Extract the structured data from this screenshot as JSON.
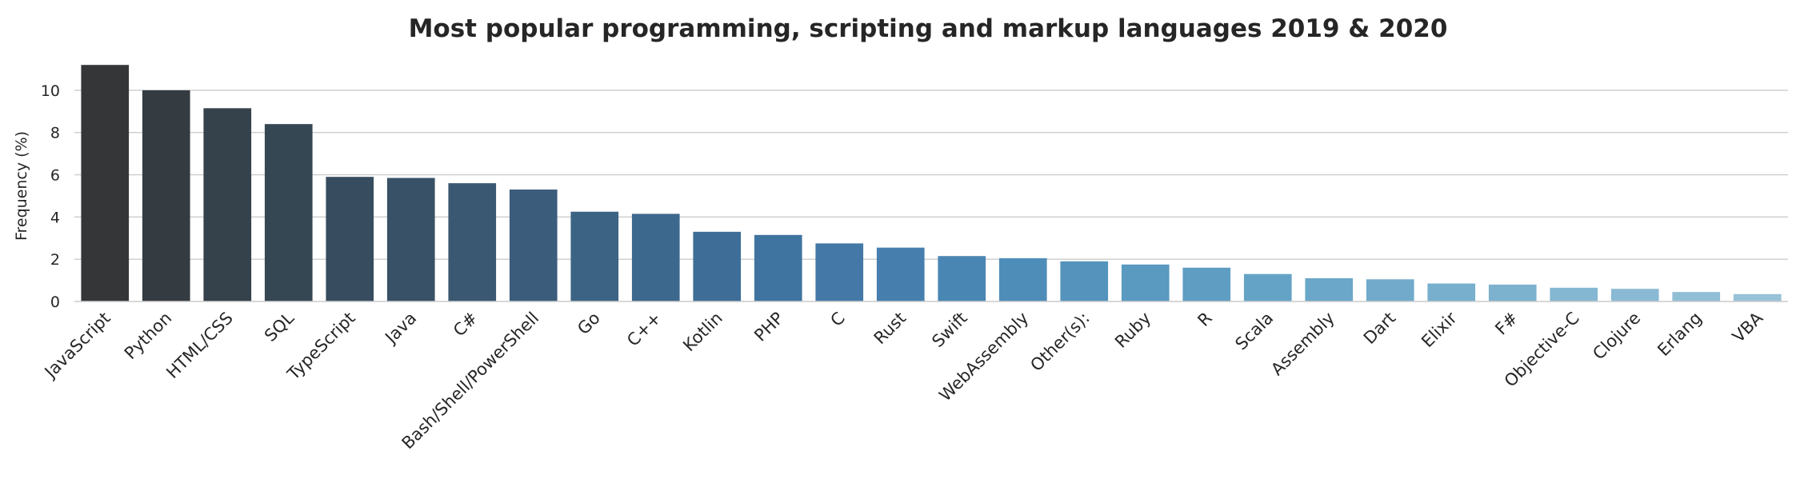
{
  "chart_data": {
    "type": "bar",
    "title": "Most popular programming, scripting and markup languages 2019 & 2020",
    "xlabel": "",
    "ylabel": "Frequency (%)",
    "ylim": [
      0,
      11.7
    ],
    "yticks": [
      0,
      2,
      4,
      6,
      8,
      10
    ],
    "grid": "horizontal",
    "categories": [
      "JavaScript",
      "Python",
      "HTML/CSS",
      "SQL",
      "TypeScript",
      "Java",
      "C#",
      "Bash/Shell/PowerShell",
      "Go",
      "C++",
      "Kotlin",
      "PHP",
      "C",
      "Rust",
      "Swift",
      "WebAssembly",
      "Other(s):",
      "Ruby",
      "R",
      "Scala",
      "Assembly",
      "Dart",
      "Elixir",
      "F#",
      "Objective-C",
      "Clojure",
      "Erlang",
      "VBA"
    ],
    "values": [
      11.2,
      10.0,
      9.15,
      8.4,
      5.9,
      5.85,
      5.6,
      5.3,
      4.25,
      4.15,
      3.3,
      3.15,
      2.75,
      2.55,
      2.15,
      2.05,
      1.9,
      1.75,
      1.6,
      1.3,
      1.1,
      1.05,
      0.85,
      0.8,
      0.65,
      0.6,
      0.45,
      0.35
    ],
    "colors": [
      "#343638",
      "#343b41",
      "#35414b",
      "#364754",
      "#374c5e",
      "#385167",
      "#3a5871",
      "#3b5d7b",
      "#3c6384",
      "#3d688e",
      "#3e6e97",
      "#4074a0",
      "#4479a7",
      "#467fae",
      "#4a86b3",
      "#4f8db9",
      "#5593bd",
      "#5a99c0",
      "#5f9dc3",
      "#65a3c6",
      "#6ba7c9",
      "#71aacb",
      "#77afcd",
      "#7db2cf",
      "#84b7d1",
      "#8abad3",
      "#90bed5",
      "#97c2d7"
    ]
  }
}
